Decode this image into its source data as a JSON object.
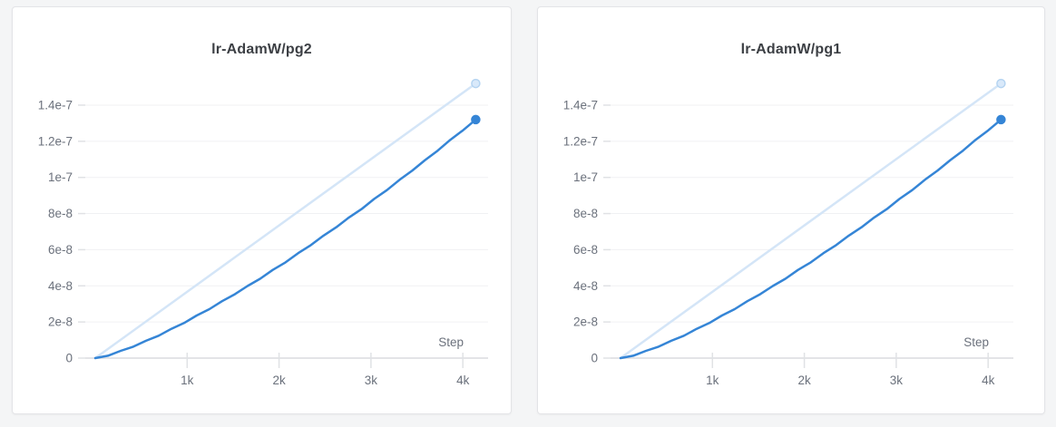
{
  "theme": {
    "page_background": "#f4f5f6",
    "card_background": "#ffffff",
    "card_border": "#e3e4e7",
    "title_color": "#3c3f44",
    "tick_label_color": "#6b717c",
    "gridline_color": "#f0f1f3",
    "axis_line_color": "#e3e4e7",
    "tick_mark_color": "#e0e2e5"
  },
  "chart_data": [
    {
      "type": "line",
      "title": "lr-AdamW/pg2",
      "xlabel": "Step",
      "ylabel": "",
      "grid": true,
      "legend": "none",
      "xlim": [
        0,
        4280
      ],
      "ylim": [
        0,
        1.57e-07
      ],
      "x_ticks": [
        "1k",
        "2k",
        "3k",
        "4k"
      ],
      "x_tick_values": [
        1000,
        2000,
        3000,
        4000
      ],
      "y_ticks": [
        "0",
        "2e-8",
        "4e-8",
        "6e-8",
        "8e-8",
        "1e-7",
        "1.2e-7",
        "1.4e-7"
      ],
      "y_tick_values": [
        0,
        2e-08,
        4e-08,
        6e-08,
        8e-08,
        1e-07,
        1.2e-07,
        1.4e-07
      ],
      "series": [
        {
          "name": "light-line",
          "color": "#d4e5f7",
          "marker": {
            "fill": "#d9e9fa",
            "stroke": "#b5d4f1"
          },
          "x": [
            0,
            4140
          ],
          "y": [
            0,
            1.52e-07
          ]
        },
        {
          "name": "dark-line",
          "color": "#3585d6",
          "marker": {
            "fill": "#3585d6",
            "stroke": "#3585d6"
          },
          "x": [
            0,
            138,
            276,
            414,
            552,
            690,
            828,
            966,
            1104,
            1242,
            1380,
            1518,
            1656,
            1794,
            1932,
            2070,
            2208,
            2346,
            2484,
            2622,
            2760,
            2898,
            3036,
            3174,
            3312,
            3450,
            3588,
            3726,
            3864,
            4002,
            4140
          ],
          "y": [
            0,
            1.3e-09,
            4e-09,
            6.3e-09,
            9.6e-09,
            1.24e-08,
            1.62e-08,
            1.94e-08,
            2.36e-08,
            2.71e-08,
            3.15e-08,
            3.53e-08,
            3.99e-08,
            4.39e-08,
            4.88e-08,
            5.3e-08,
            5.81e-08,
            6.25e-08,
            6.78e-08,
            7.24e-08,
            7.78e-08,
            8.25e-08,
            8.81e-08,
            9.3e-08,
            9.87e-08,
            1.038e-07,
            1.096e-07,
            1.148e-07,
            1.208e-07,
            1.261e-07,
            1.32e-07
          ]
        }
      ]
    },
    {
      "type": "line",
      "title": "lr-AdamW/pg1",
      "xlabel": "Step",
      "ylabel": "",
      "grid": true,
      "legend": "none",
      "xlim": [
        0,
        4280
      ],
      "ylim": [
        0,
        1.57e-07
      ],
      "x_ticks": [
        "1k",
        "2k",
        "3k",
        "4k"
      ],
      "x_tick_values": [
        1000,
        2000,
        3000,
        4000
      ],
      "y_ticks": [
        "0",
        "2e-8",
        "4e-8",
        "6e-8",
        "8e-8",
        "1e-7",
        "1.2e-7",
        "1.4e-7"
      ],
      "y_tick_values": [
        0,
        2e-08,
        4e-08,
        6e-08,
        8e-08,
        1e-07,
        1.2e-07,
        1.4e-07
      ],
      "series": [
        {
          "name": "light-line",
          "color": "#d4e5f7",
          "marker": {
            "fill": "#d9e9fa",
            "stroke": "#b5d4f1"
          },
          "x": [
            0,
            4140
          ],
          "y": [
            0,
            1.52e-07
          ]
        },
        {
          "name": "dark-line",
          "color": "#3585d6",
          "marker": {
            "fill": "#3585d6",
            "stroke": "#3585d6"
          },
          "x": [
            0,
            138,
            276,
            414,
            552,
            690,
            828,
            966,
            1104,
            1242,
            1380,
            1518,
            1656,
            1794,
            1932,
            2070,
            2208,
            2346,
            2484,
            2622,
            2760,
            2898,
            3036,
            3174,
            3312,
            3450,
            3588,
            3726,
            3864,
            4002,
            4140
          ],
          "y": [
            0,
            1.3e-09,
            4e-09,
            6.3e-09,
            9.6e-09,
            1.24e-08,
            1.62e-08,
            1.94e-08,
            2.36e-08,
            2.71e-08,
            3.15e-08,
            3.53e-08,
            3.99e-08,
            4.39e-08,
            4.88e-08,
            5.3e-08,
            5.81e-08,
            6.25e-08,
            6.78e-08,
            7.24e-08,
            7.78e-08,
            8.25e-08,
            8.81e-08,
            9.3e-08,
            9.87e-08,
            1.038e-07,
            1.096e-07,
            1.148e-07,
            1.208e-07,
            1.261e-07,
            1.32e-07
          ]
        }
      ]
    }
  ]
}
